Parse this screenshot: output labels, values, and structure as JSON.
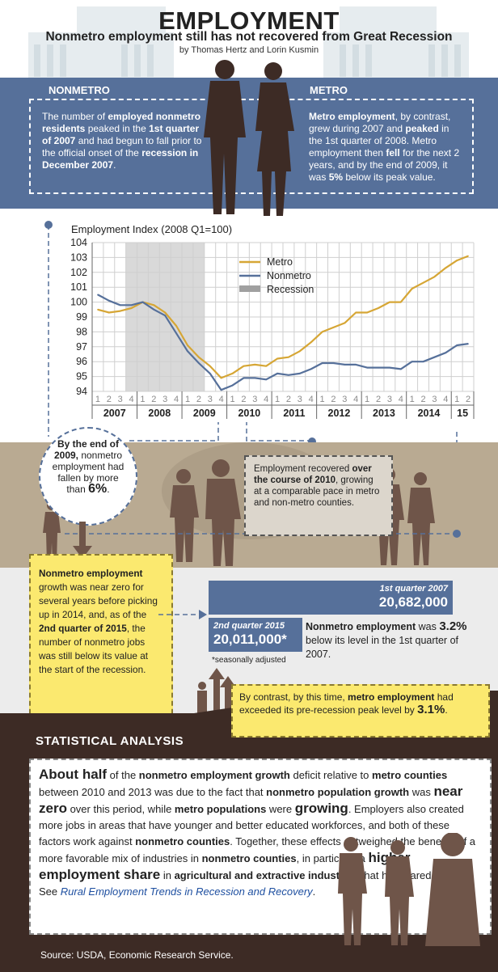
{
  "header": {
    "title": "EMPLOYMENT",
    "subtitle": "Nonmetro employment still has not recovered from Great Recession",
    "byline": "by Thomas Hertz and Lorin Kusmin"
  },
  "nonmetro_panel": {
    "heading": "NONMETRO",
    "t1": "The number of ",
    "b1": "employed nonmetro residents",
    "t2": " peaked in the ",
    "b2": "1st quarter of 2007",
    "t3": " and had begun to fall prior to the official onset of the ",
    "b3": "recession in December 2007",
    "t4": "."
  },
  "metro_panel": {
    "heading": "METRO",
    "b1": "Metro employment",
    "t1": ", by contrast, grew during 2007 and ",
    "b2": "peaked",
    "t2": " in the 1st quarter of 2008. Metro employment then ",
    "b3": "fell",
    "t3": " for the next 2 years, and by the end of 2009, it was ",
    "b4": "5%",
    "t4": " below its peak value."
  },
  "colors": {
    "metro": "#d6a635",
    "nonmetro": "#56709a",
    "recession": "#d9d9d9",
    "blue_band": "#56709a",
    "dark": "#3d2b25",
    "yellow": "#fbe96f"
  },
  "chart_data": {
    "type": "line",
    "title": "Employment Index (2008 Q1=100)",
    "ylim": [
      94,
      104
    ],
    "yticks": [
      "94",
      "95",
      "96",
      "97",
      "98",
      "99",
      "100",
      "101",
      "102",
      "103",
      "104"
    ],
    "quarter_labels": [
      "1",
      "2",
      "3",
      "4",
      "1",
      "2",
      "3",
      "4",
      "1",
      "2",
      "3",
      "4",
      "1",
      "2",
      "3",
      "4",
      "1",
      "2",
      "3",
      "4",
      "1",
      "2",
      "3",
      "4",
      "1",
      "2",
      "3",
      "4",
      "1",
      "2",
      "3",
      "4",
      "1",
      "2"
    ],
    "year_labels": [
      "2007",
      "2008",
      "2009",
      "2010",
      "2011",
      "2012",
      "2013",
      "2014",
      "15"
    ],
    "x": [
      "2007Q1",
      "2007Q2",
      "2007Q3",
      "2007Q4",
      "2008Q1",
      "2008Q2",
      "2008Q3",
      "2008Q4",
      "2009Q1",
      "2009Q2",
      "2009Q3",
      "2009Q4",
      "2010Q1",
      "2010Q2",
      "2010Q3",
      "2010Q4",
      "2011Q1",
      "2011Q2",
      "2011Q3",
      "2011Q4",
      "2012Q1",
      "2012Q2",
      "2012Q3",
      "2012Q4",
      "2013Q1",
      "2013Q2",
      "2013Q3",
      "2013Q4",
      "2014Q1",
      "2014Q2",
      "2014Q3",
      "2014Q4",
      "2015Q1",
      "2015Q2"
    ],
    "series": [
      {
        "name": "Metro",
        "values": [
          99.5,
          99.3,
          99.4,
          99.6,
          100.0,
          99.8,
          99.3,
          98.4,
          97.1,
          96.3,
          95.7,
          94.9,
          95.2,
          95.7,
          95.8,
          95.7,
          96.2,
          96.3,
          96.7,
          97.3,
          98.0,
          98.3,
          98.6,
          99.3,
          99.3,
          99.6,
          100.0,
          100.0,
          100.9,
          101.3,
          101.7,
          102.3,
          102.8,
          103.1
        ]
      },
      {
        "name": "Nonmetro",
        "values": [
          100.5,
          100.1,
          99.8,
          99.8,
          100.0,
          99.5,
          99.1,
          97.9,
          96.7,
          95.9,
          95.2,
          94.1,
          94.4,
          94.9,
          94.9,
          94.8,
          95.2,
          95.1,
          95.2,
          95.5,
          95.9,
          95.9,
          95.8,
          95.8,
          95.6,
          95.6,
          95.6,
          95.5,
          96.0,
          96.0,
          96.3,
          96.6,
          97.1,
          97.2
        ]
      }
    ],
    "recession": {
      "label": "Recession",
      "start": "2007Q4",
      "end": "2009Q2"
    },
    "legend_position": "top-right",
    "grid": true
  },
  "callouts": {
    "end2009": {
      "b1": "By the end of 2009,",
      "t1": " nonmetro employment had fallen by more than ",
      "b2": "6%",
      "t2": "."
    },
    "recovery2010": {
      "t1": "Employment recovered ",
      "b1": "over the course of 2010",
      "t2": ", growing at a comparable pace in metro and non-metro counties."
    },
    "nonmetro_growth": {
      "b1": "Nonmetro employment",
      "t1": " growth was near zero for several years before picking up in 2014, and, as of the ",
      "b2": "2nd quarter of 2015",
      "t2": ", the number of nonmetro jobs was still below its value at the start of the recession."
    },
    "q2007": {
      "label": "1st quarter 2007",
      "value": "20,682,000"
    },
    "q2015": {
      "label": "2nd quarter 2015",
      "value": "20,011,000*"
    },
    "footnote": "*seasonally adjusted",
    "below": {
      "b1": "Nonmetro employment",
      "t1": " was ",
      "b2": "3.2%",
      "t2": " below its level in the 1st quarter of 2007."
    },
    "exceeded": {
      "t1": "By contrast, by this time, ",
      "b1": "metro employment",
      "t2": " had exceeded its pre-recession peak level by ",
      "b2": "3.1%",
      "t3": "."
    }
  },
  "statistical": {
    "heading": "STATISTICAL ANALYSIS",
    "s1": "About half",
    "s2": " of the ",
    "s3": "nonmetro employment growth",
    "s4": " deficit relative to ",
    "s5": "metro counties",
    "s6": " between 2010 and 2013 was due to the fact that ",
    "s7": "nonmetro population growth",
    "s8": " was ",
    "s9": "near zero",
    "s10": " over this period, while ",
    "s11": "metro populations",
    "s12": " were ",
    "s13": "growing",
    "s14": ". Employers also created more jobs in areas that have younger and better educated workforces, and both of these factors work against ",
    "s15": "nonmetro counties",
    "s16": ". Together, these effects outweighed the benefits of a more favorable mix of industries in ",
    "s17": "nonmetro counties",
    "s18": ", in particular a ",
    "s19": "higher employment share",
    "s20": " in ",
    "s21": "agricultural and extractive industries",
    "s22": " that have fared well.",
    "see": "See ",
    "link": "Rural Employment Trends in Recession and Recovery",
    "dot": "."
  },
  "source": "Source: USDA, Economic Research Service."
}
